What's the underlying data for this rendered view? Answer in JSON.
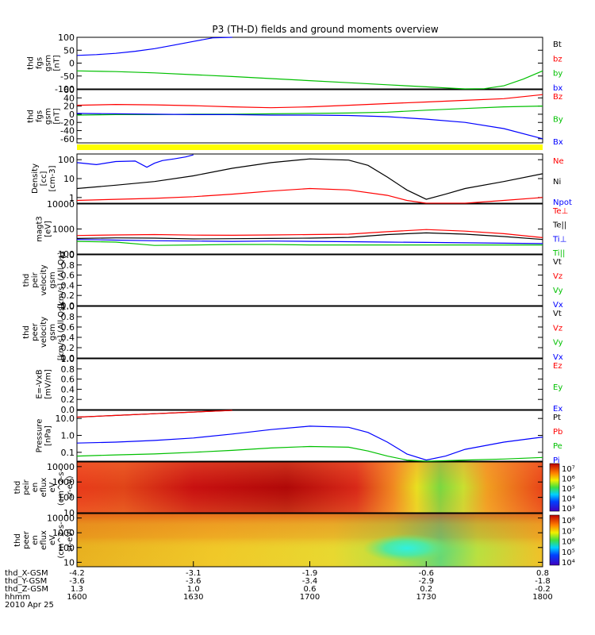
{
  "title": "P3 (TH-D) fields and ground moments overview",
  "chart_data": [
    {
      "type": "line",
      "ylabel": [
        "thd",
        "fgs",
        "gsm",
        "[nT]"
      ],
      "ylim": [
        -100,
        100
      ],
      "yticks": [
        "100",
        "50",
        "0",
        "-50",
        "-100"
      ],
      "legend": [
        {
          "label": "Bt",
          "color": "#000000"
        },
        {
          "label": "bz",
          "color": "#ff0000"
        },
        {
          "label": "by",
          "color": "#00c000"
        },
        {
          "label": "bx",
          "color": "#0000ff"
        }
      ],
      "series": [
        {
          "label": "bx",
          "color": "#0000ff",
          "x": [
            0,
            5,
            10,
            15,
            20,
            25,
            30,
            35,
            40
          ],
          "y": [
            30,
            33,
            38,
            46,
            56,
            70,
            84,
            98,
            110
          ]
        },
        {
          "label": "by",
          "color": "#00c000",
          "x": [
            0,
            10,
            20,
            30,
            40,
            50,
            60,
            70,
            80,
            90,
            95,
            100,
            105,
            110,
            115,
            120
          ],
          "y": [
            -30,
            -33,
            -38,
            -45,
            -52,
            -60,
            -68,
            -76,
            -84,
            -92,
            -96,
            -100,
            -99,
            -88,
            -62,
            -30
          ]
        }
      ]
    },
    {
      "type": "line",
      "ylabel": [
        "thd",
        "fgs",
        "gsm",
        "[nT]"
      ],
      "ylim": [
        -70,
        60
      ],
      "yticks": [
        "60",
        "40",
        "20",
        "0",
        "-20",
        "-40",
        "-60"
      ],
      "legend": [
        {
          "label": "Bz",
          "color": "#ff0000"
        },
        {
          "label": "By",
          "color": "#00c000"
        },
        {
          "label": "Bx",
          "color": "#0000ff"
        }
      ],
      "series": [
        {
          "label": "Bz",
          "color": "#ff0000",
          "x": [
            0,
            10,
            20,
            30,
            40,
            50,
            60,
            70,
            80,
            90,
            100,
            110,
            120
          ],
          "y": [
            22,
            24,
            23,
            21,
            18,
            16,
            18,
            22,
            26,
            30,
            34,
            38,
            48
          ]
        },
        {
          "label": "By",
          "color": "#00c000",
          "x": [
            0,
            10,
            20,
            30,
            40,
            50,
            60,
            70,
            80,
            90,
            100,
            110,
            120
          ],
          "y": [
            -2,
            -1,
            -1,
            0,
            0,
            1,
            2,
            3,
            5,
            10,
            14,
            18,
            20
          ]
        },
        {
          "label": "Bx",
          "color": "#0000ff",
          "x": [
            0,
            10,
            20,
            30,
            40,
            50,
            60,
            70,
            80,
            90,
            100,
            110,
            120
          ],
          "y": [
            2,
            1,
            0,
            -1,
            -1,
            -2,
            -2,
            -3,
            -6,
            -12,
            -20,
            -35,
            -60
          ]
        }
      ]
    },
    {
      "type": "line",
      "ylabel": [
        "Density",
        "[cc]",
        "[cm-3]"
      ],
      "yscale": "log",
      "ylim": [
        0.5,
        200
      ],
      "yticks": [
        "100",
        "10",
        "1"
      ],
      "legend": [
        {
          "label": "Ne",
          "color": "#ff0000"
        },
        {
          "label": "Ni",
          "color": "#000000"
        },
        {
          "label": "Npot",
          "color": "#0000ff"
        }
      ],
      "series": [
        {
          "label": "Npot",
          "color": "#0000ff",
          "x": [
            0,
            5,
            10,
            15,
            18,
            20,
            22,
            25,
            28,
            30
          ],
          "y": [
            70,
            55,
            80,
            85,
            40,
            65,
            90,
            110,
            140,
            180
          ]
        },
        {
          "label": "Ni",
          "color": "#000000",
          "x": [
            0,
            10,
            20,
            30,
            40,
            50,
            60,
            70,
            75,
            80,
            85,
            90,
            95,
            100,
            110,
            120
          ],
          "y": [
            3,
            4.5,
            7,
            14,
            35,
            70,
            110,
            95,
            50,
            12,
            2.5,
            0.8,
            1.5,
            3,
            7,
            18
          ]
        },
        {
          "label": "Ne",
          "color": "#ff0000",
          "x": [
            0,
            10,
            20,
            30,
            40,
            50,
            60,
            70,
            80,
            85,
            90,
            95,
            100,
            110,
            120
          ],
          "y": [
            0.7,
            0.8,
            0.9,
            1.1,
            1.5,
            2.2,
            3,
            2.5,
            1.3,
            0.7,
            0.5,
            0.45,
            0.5,
            0.7,
            1
          ]
        }
      ]
    },
    {
      "type": "line",
      "ylabel": [
        "magt3",
        "[eV]"
      ],
      "yscale": "log",
      "ylim": [
        100,
        10000
      ],
      "yticks": [
        "10000",
        "1000",
        "100"
      ],
      "legend": [
        {
          "label": "Te⊥",
          "color": "#ff0000"
        },
        {
          "label": "Te||",
          "color": "#000000"
        },
        {
          "label": "Ti⊥",
          "color": "#0000ff"
        },
        {
          "label": "Ti||",
          "color": "#00c000"
        }
      ],
      "series": [
        {
          "label": "Te⊥",
          "color": "#ff0000",
          "x": [
            0,
            10,
            20,
            30,
            40,
            50,
            60,
            70,
            80,
            90,
            100,
            110,
            120
          ],
          "y": [
            550,
            580,
            600,
            570,
            560,
            580,
            600,
            620,
            780,
            950,
            820,
            650,
            450
          ]
        },
        {
          "label": "Te||",
          "color": "#000000",
          "x": [
            0,
            10,
            20,
            30,
            40,
            50,
            60,
            70,
            80,
            90,
            100,
            110,
            120
          ],
          "y": [
            420,
            440,
            430,
            400,
            410,
            420,
            430,
            460,
            600,
            700,
            620,
            500,
            380
          ]
        },
        {
          "label": "Ti⊥",
          "color": "#0000ff",
          "x": [
            0,
            10,
            20,
            30,
            40,
            50,
            60,
            70,
            80,
            90,
            100,
            110,
            120
          ],
          "y": [
            380,
            360,
            340,
            330,
            320,
            330,
            320,
            310,
            300,
            290,
            280,
            270,
            260
          ]
        },
        {
          "label": "Ti||",
          "color": "#00c000",
          "x": [
            0,
            10,
            20,
            30,
            40,
            50,
            60,
            70,
            80,
            90,
            100,
            110,
            120
          ],
          "y": [
            320,
            300,
            220,
            230,
            240,
            240,
            230,
            230,
            230,
            230,
            230,
            230,
            230
          ]
        }
      ]
    },
    {
      "type": "line",
      "ylabel": [
        "thd",
        "peir",
        "velocity",
        "gsm",
        "[km/s] (All Qs)"
      ],
      "ylim": [
        0,
        1
      ],
      "yticks": [
        "1.0",
        "0.8",
        "0.6",
        "0.4",
        "0.2",
        "0.0"
      ],
      "legend": [
        {
          "label": "Vt",
          "color": "#000000"
        },
        {
          "label": "Vz",
          "color": "#ff0000"
        },
        {
          "label": "Vy",
          "color": "#00c000"
        },
        {
          "label": "Vx",
          "color": "#0000ff"
        }
      ],
      "series": []
    },
    {
      "type": "line",
      "ylabel": [
        "thd",
        "peer",
        "velocity",
        "gsm",
        "[km/s] (All Qs)"
      ],
      "ylim": [
        0,
        1
      ],
      "yticks": [
        "1.0",
        "0.8",
        "0.6",
        "0.4",
        "0.2",
        "0.0"
      ],
      "legend": [
        {
          "label": "Vt",
          "color": "#000000"
        },
        {
          "label": "Vz",
          "color": "#ff0000"
        },
        {
          "label": "Vy",
          "color": "#00c000"
        },
        {
          "label": "Vx",
          "color": "#0000ff"
        }
      ],
      "series": []
    },
    {
      "type": "line",
      "ylabel": [
        "E=-VxB",
        "[mV/m]"
      ],
      "ylim": [
        0,
        1
      ],
      "yticks": [
        "1.0",
        "0.8",
        "0.6",
        "0.4",
        "0.2",
        "0.0"
      ],
      "legend": [
        {
          "label": "Ez",
          "color": "#ff0000"
        },
        {
          "label": "Ey",
          "color": "#00c000"
        },
        {
          "label": "Ex",
          "color": "#0000ff"
        }
      ],
      "series": []
    },
    {
      "type": "line",
      "ylabel": [
        "Pressure",
        "[nPa]"
      ],
      "yscale": "log",
      "ylim": [
        0.03,
        30
      ],
      "yticks": [
        "10.0",
        "1.0",
        "0.1"
      ],
      "legend": [
        {
          "label": "Pt",
          "color": "#000000"
        },
        {
          "label": "Pb",
          "color": "#ff0000"
        },
        {
          "label": "Pe",
          "color": "#00c000"
        },
        {
          "label": "Pi",
          "color": "#0000ff"
        }
      ],
      "series": [
        {
          "label": "Pt",
          "color": "#000000",
          "x": [
            0,
            10,
            20,
            30,
            40
          ],
          "y": [
            12,
            15,
            19,
            24,
            30
          ]
        },
        {
          "label": "Pb",
          "color": "#ff0000",
          "x": [
            0,
            10,
            20,
            30,
            40
          ],
          "y": [
            12,
            15,
            19,
            24,
            30
          ]
        },
        {
          "label": "Pi",
          "color": "#0000ff",
          "x": [
            0,
            10,
            20,
            30,
            40,
            50,
            60,
            70,
            75,
            80,
            85,
            90,
            95,
            100,
            110,
            120
          ],
          "y": [
            0.35,
            0.4,
            0.5,
            0.7,
            1.2,
            2.2,
            3.5,
            3,
            1.5,
            0.4,
            0.08,
            0.035,
            0.06,
            0.15,
            0.4,
            0.8
          ]
        },
        {
          "label": "Pe",
          "color": "#00c000",
          "x": [
            0,
            10,
            20,
            30,
            40,
            50,
            60,
            70,
            75,
            80,
            85,
            90,
            95,
            100,
            110,
            120
          ],
          "y": [
            0.06,
            0.07,
            0.08,
            0.1,
            0.13,
            0.18,
            0.22,
            0.2,
            0.12,
            0.06,
            0.035,
            0.03,
            0.032,
            0.035,
            0.04,
            0.05
          ]
        }
      ]
    },
    {
      "type": "heatmap",
      "ylabel": [
        "thd",
        "peir",
        "en",
        "eflux",
        "eV",
        "(cm^2-s-",
        "sr-eV)"
      ],
      "yscale": "log",
      "ylim": [
        10,
        20000
      ],
      "yticks": [
        "10000",
        "1000",
        "100",
        "10"
      ],
      "colorbar": {
        "scale": "log",
        "range": [
          1000,
          10000000
        ],
        "labels": [
          "10⁷",
          "10⁶",
          "10⁵",
          "10⁴",
          "10³"
        ]
      }
    },
    {
      "type": "heatmap",
      "ylabel": [
        "thd",
        "peer",
        "en",
        "eflux",
        "eV",
        "(cm^2-s-",
        "sr-eV)"
      ],
      "yscale": "log",
      "ylim": [
        5,
        20000
      ],
      "yticks": [
        "10000",
        "1000",
        "100",
        "10"
      ],
      "colorbar": {
        "scale": "log",
        "range": [
          10000,
          100000000
        ],
        "labels": [
          "10⁸",
          "10⁷",
          "10⁶",
          "10⁵",
          "10⁴"
        ]
      }
    }
  ],
  "xaxis": {
    "rows": [
      {
        "label": "thd_X-GSM",
        "values": [
          "-4.2",
          "-3.1",
          "-1.9",
          "-0.6",
          "0.8"
        ]
      },
      {
        "label": "thd_Y-GSM",
        "values": [
          "-3.6",
          "-3.6",
          "-3.4",
          "-2.9",
          "-1.8"
        ]
      },
      {
        "label": "thd_Z-GSM",
        "values": [
          "1.3",
          "1.0",
          "0.6",
          "0.2",
          "-0.2"
        ]
      },
      {
        "label": "hhmm",
        "values": [
          "1600",
          "1630",
          "1700",
          "1730",
          "1800"
        ]
      }
    ],
    "date": "2010 Apr 25"
  }
}
